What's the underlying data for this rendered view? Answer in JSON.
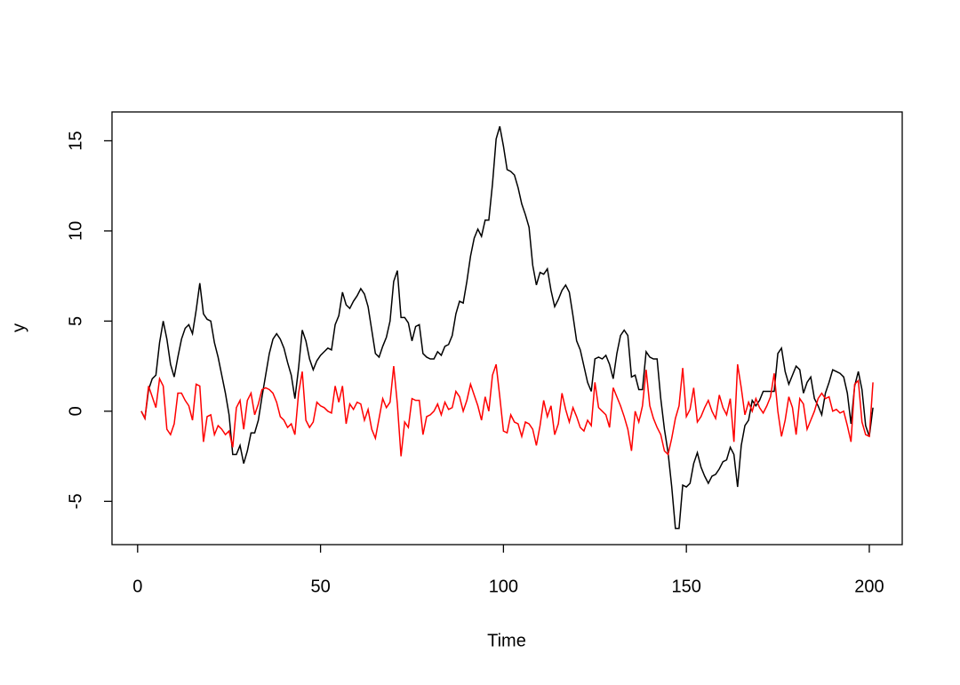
{
  "chart_data": {
    "type": "line",
    "x_label": "Time",
    "y_label": "y",
    "x": [
      1,
      2,
      3,
      4,
      5,
      6,
      7,
      8,
      9,
      10,
      11,
      12,
      13,
      14,
      15,
      16,
      17,
      18,
      19,
      20,
      21,
      22,
      23,
      24,
      25,
      26,
      27,
      28,
      29,
      30,
      31,
      32,
      33,
      34,
      35,
      36,
      37,
      38,
      39,
      40,
      41,
      42,
      43,
      44,
      45,
      46,
      47,
      48,
      49,
      50,
      51,
      52,
      53,
      54,
      55,
      56,
      57,
      58,
      59,
      60,
      61,
      62,
      63,
      64,
      65,
      66,
      67,
      68,
      69,
      70,
      71,
      72,
      73,
      74,
      75,
      76,
      77,
      78,
      79,
      80,
      81,
      82,
      83,
      84,
      85,
      86,
      87,
      88,
      89,
      90,
      91,
      92,
      93,
      94,
      95,
      96,
      97,
      98,
      99,
      100,
      101,
      102,
      103,
      104,
      105,
      106,
      107,
      108,
      109,
      110,
      111,
      112,
      113,
      114,
      115,
      116,
      117,
      118,
      119,
      120,
      121,
      122,
      123,
      124,
      125,
      126,
      127,
      128,
      129,
      130,
      131,
      132,
      133,
      134,
      135,
      136,
      137,
      138,
      139,
      140,
      141,
      142,
      143,
      144,
      145,
      146,
      147,
      148,
      149,
      150,
      151,
      152,
      153,
      154,
      155,
      156,
      157,
      158,
      159,
      160,
      161,
      162,
      163,
      164,
      165,
      166,
      167,
      168,
      169,
      170,
      171,
      172,
      173,
      174,
      175,
      176,
      177,
      178,
      179,
      180,
      181,
      182,
      183,
      184,
      185,
      186,
      187,
      188,
      189,
      190,
      191,
      192,
      193,
      194,
      195,
      196,
      197,
      198,
      199,
      200,
      201
    ],
    "series": [
      {
        "color": "#000000",
        "values": [
          0,
          -0.4,
          1.2,
          1.8,
          2.0,
          3.8,
          5.0,
          4.0,
          2.6,
          1.9,
          3.0,
          4.0,
          4.6,
          4.8,
          4.3,
          5.6,
          7.1,
          5.4,
          5.1,
          5.0,
          3.8,
          3.0,
          2.0,
          1.0,
          -0.2,
          -2.4,
          -2.4,
          -1.9,
          -2.9,
          -2.2,
          -1.2,
          -1.2,
          -0.5,
          0.8,
          2.0,
          3.2,
          4.0,
          4.3,
          4.0,
          3.5,
          2.7,
          2.0,
          0.7,
          2.4,
          4.5,
          3.9,
          2.9,
          2.3,
          2.8,
          3.1,
          3.3,
          3.5,
          3.4,
          4.8,
          5.3,
          6.6,
          5.9,
          5.7,
          6.1,
          6.4,
          6.8,
          6.5,
          5.8,
          4.5,
          3.2,
          3.0,
          3.6,
          4.1,
          5.0,
          7.2,
          7.8,
          5.2,
          5.2,
          4.9,
          3.9,
          4.7,
          4.8,
          3.2,
          3.0,
          2.9,
          2.9,
          3.3,
          3.1,
          3.6,
          3.7,
          4.2,
          5.4,
          6.1,
          6.0,
          7.2,
          8.6,
          9.6,
          10.1,
          9.7,
          10.6,
          10.6,
          12.6,
          15.1,
          15.8,
          14.7,
          13.4,
          13.3,
          13.1,
          12.4,
          11.5,
          10.9,
          10.2,
          8.1,
          7.0,
          7.7,
          7.6,
          7.9,
          6.7,
          5.8,
          6.2,
          6.7,
          7.0,
          6.6,
          5.3,
          3.9,
          3.4,
          2.5,
          1.6,
          1.1,
          2.9,
          3.0,
          2.9,
          3.1,
          2.6,
          1.8,
          3.2,
          4.2,
          4.5,
          4.2,
          1.9,
          2.0,
          1.2,
          1.2,
          3.3,
          3.0,
          2.9,
          2.9,
          0.7,
          -1.0,
          -2.3,
          -4.2,
          -6.5,
          -6.5,
          -4.1,
          -4.2,
          -4.0,
          -2.9,
          -2.3,
          -3.1,
          -3.6,
          -4.0,
          -3.6,
          -3.5,
          -3.2,
          -2.8,
          -2.7,
          -2.0,
          -2.4,
          -4.2,
          -1.9,
          -0.8,
          -0.5,
          0.6,
          0.3,
          0.6,
          1.1,
          1.1,
          1.1,
          1.1,
          3.2,
          3.5,
          2.2,
          1.5,
          2.0,
          2.5,
          2.3,
          1.0,
          1.6,
          1.9,
          0.7,
          0.3,
          -0.2,
          1.0,
          1.6,
          2.3,
          2.2,
          2.1,
          1.9,
          1.0,
          -0.7,
          1.4,
          2.2,
          1.2,
          -0.8,
          -1.4,
          0.2
        ]
      },
      {
        "color": "#ff0000",
        "values": [
          0,
          -0.4,
          1.4,
          0.8,
          0.2,
          1.8,
          1.4,
          -1.0,
          -1.3,
          -0.7,
          1.0,
          1.0,
          0.6,
          0.3,
          -0.5,
          1.5,
          1.4,
          -1.7,
          -0.3,
          -0.2,
          -1.3,
          -0.8,
          -1.0,
          -1.3,
          -1.1,
          -2.0,
          0.2,
          0.6,
          -1.0,
          0.6,
          1.0,
          -0.2,
          0.4,
          1.2,
          1.3,
          1.2,
          1.0,
          0.5,
          -0.3,
          -0.5,
          -0.9,
          -0.7,
          -1.3,
          1.0,
          2.2,
          -0.5,
          -0.9,
          -0.6,
          0.5,
          0.3,
          0.2,
          0.0,
          -0.1,
          1.4,
          0.5,
          1.4,
          -0.7,
          0.4,
          0.1,
          0.5,
          0.4,
          -0.5,
          0.1,
          -1.0,
          -1.5,
          -0.4,
          0.7,
          0.2,
          0.5,
          2.5,
          0.4,
          -2.5,
          -0.6,
          -0.9,
          0.7,
          0.6,
          0.6,
          -1.3,
          -0.3,
          -0.2,
          0.0,
          0.4,
          -0.2,
          0.5,
          0.1,
          0.2,
          1.1,
          0.8,
          0.0,
          0.6,
          1.5,
          0.9,
          0.3,
          -0.5,
          0.8,
          0.0,
          2.0,
          2.6,
          0.8,
          -1.1,
          -1.2,
          -0.2,
          -0.6,
          -0.7,
          -1.4,
          -0.6,
          -0.7,
          -1.0,
          -1.9,
          -0.8,
          0.6,
          -0.3,
          0.3,
          -1.3,
          -0.7,
          1.0,
          0.1,
          -0.6,
          0.2,
          -0.3,
          -0.9,
          -1.1,
          -0.5,
          -0.8,
          1.6,
          0.2,
          0.0,
          -0.2,
          -0.9,
          1.3,
          0.8,
          0.3,
          -0.3,
          -1.0,
          -2.2,
          0.0,
          -0.6,
          0.3,
          2.3,
          0.3,
          -0.4,
          -0.9,
          -1.3,
          -2.2,
          -2.4,
          -1.5,
          -0.4,
          0.3,
          2.4,
          -0.3,
          0.1,
          1.3,
          -0.6,
          -0.3,
          0.2,
          0.6,
          0.0,
          -0.4,
          0.9,
          0.2,
          -0.2,
          0.7,
          -1.7,
          2.6,
          1.3,
          -0.2,
          0.5,
          0.0,
          0.7,
          0.2,
          -0.1,
          0.3,
          0.8,
          2.1,
          0.0,
          -1.4,
          -0.5,
          0.8,
          0.2,
          -1.3,
          0.7,
          0.4,
          -1.0,
          -0.5,
          0.0,
          0.7,
          1.0,
          0.7,
          0.8,
          0.0,
          0.1,
          -0.1,
          0.0,
          -0.8,
          -1.7,
          1.5,
          1.7,
          -0.6,
          -1.3,
          -1.4,
          1.6
        ]
      }
    ],
    "xlim": [
      -7,
      209
    ],
    "xticks": [
      0,
      50,
      100,
      150,
      200
    ],
    "ylim": [
      -7.4,
      16.6
    ],
    "yticks": [
      -5,
      0,
      5,
      10,
      15
    ]
  }
}
